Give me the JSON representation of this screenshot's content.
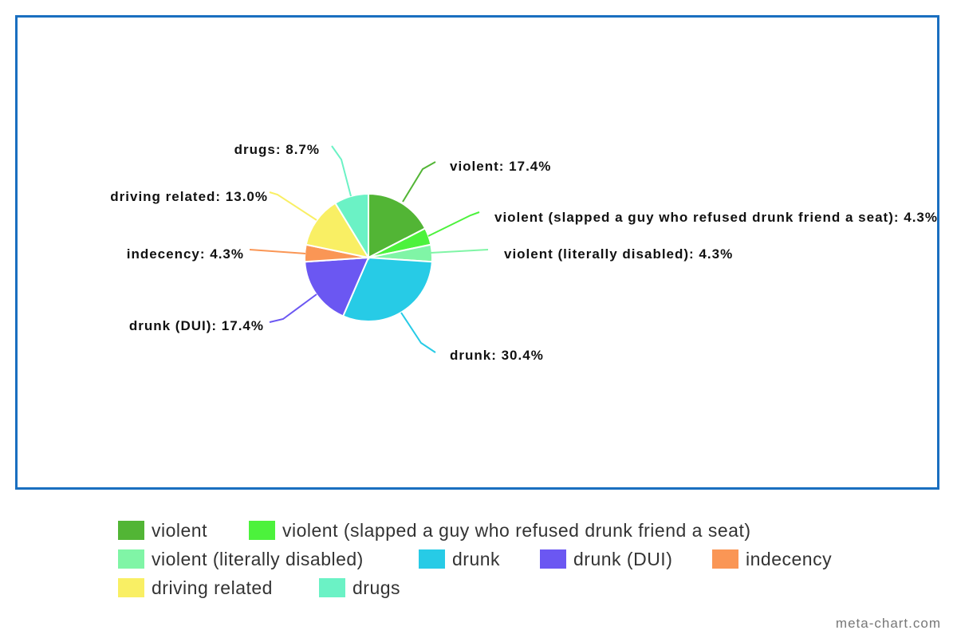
{
  "chart_data": {
    "type": "pie",
    "slices": [
      {
        "name": "violent",
        "label": "violent: 17.4%",
        "value": 17.4,
        "color": "#52b535"
      },
      {
        "name": "violent (slapped a guy who refused drunk friend a seat)",
        "label": "violent (slapped a guy who refused drunk friend a seat): 4.3%",
        "value": 4.3,
        "color": "#4cf23c"
      },
      {
        "name": "violent (literally disabled)",
        "label": "violent (literally disabled): 4.3%",
        "value": 4.3,
        "color": "#80f5a6"
      },
      {
        "name": "drunk",
        "label": "drunk: 30.4%",
        "value": 30.4,
        "color": "#27cbe6"
      },
      {
        "name": "drunk (DUI)",
        "label": "drunk (DUI): 17.4%",
        "value": 17.4,
        "color": "#6b57f2"
      },
      {
        "name": "indecency",
        "label": "indecency: 4.3%",
        "value": 4.3,
        "color": "#fa9655"
      },
      {
        "name": "driving related",
        "label": "driving related: 13.0%",
        "value": 13.0,
        "color": "#f9ef64"
      },
      {
        "name": "drugs",
        "label": "drugs: 8.7%",
        "value": 8.7,
        "color": "#6bf2c5"
      }
    ],
    "legend_position": "bottom",
    "frame_color": "#1a6fc0"
  },
  "watermark": "meta-chart.com"
}
